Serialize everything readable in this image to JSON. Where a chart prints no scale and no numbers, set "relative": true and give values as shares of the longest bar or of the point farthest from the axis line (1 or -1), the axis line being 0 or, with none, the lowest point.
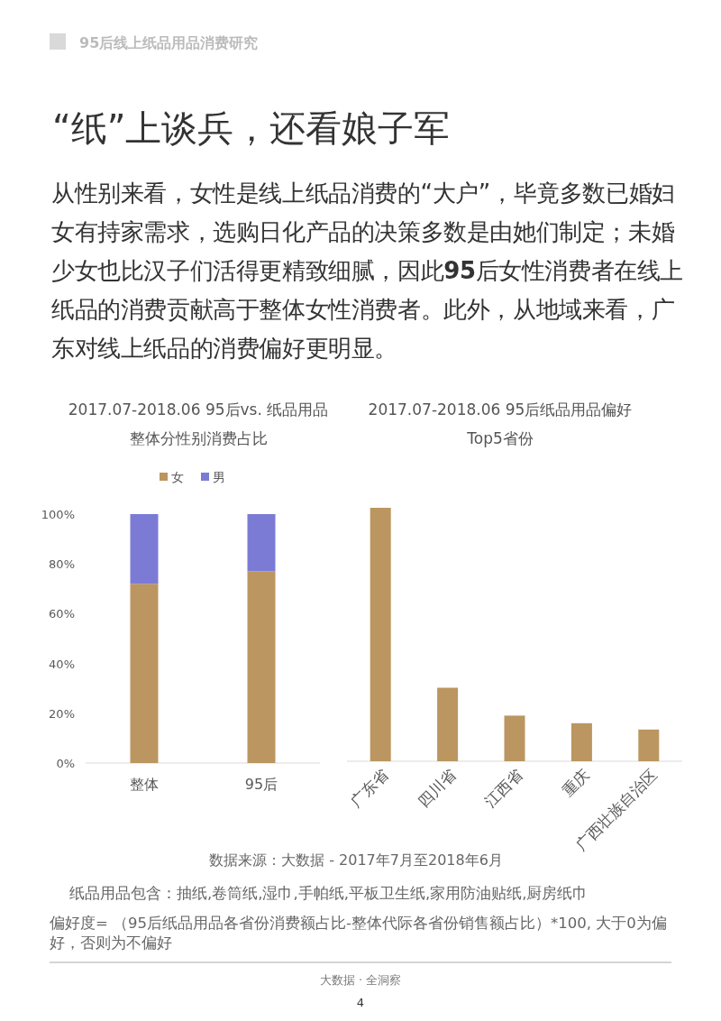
{
  "chart_data": [
    {
      "type": "bar",
      "title": "2017.07-2018.06 95后vs. 纸品用品整体分性别消费占比",
      "categories": [
        "整体",
        "95后"
      ],
      "stacked": true,
      "legend": "top",
      "series": [
        {
          "name": "女",
          "color": "#bb9660",
          "values": [
            72,
            77
          ]
        },
        {
          "name": "男",
          "color": "#7b7bd6",
          "values": [
            28,
            23
          ]
        }
      ],
      "ylim": [
        0,
        100
      ],
      "yticks": [
        {
          "value": 0,
          "label": "0%"
        },
        {
          "value": 20,
          "label": "20%"
        },
        {
          "value": 40,
          "label": "40%"
        },
        {
          "value": 60,
          "label": "60%"
        },
        {
          "value": 80,
          "label": "80%"
        },
        {
          "value": 100,
          "label": "100%"
        }
      ],
      "annotations": [
        "95后线上纸品用品消费研究",
        "“纸”上谈兵，还看娘子军",
        "从性别来看，女性是线上纸品消费的“大户”，毕竟多数已婚妇女有持家需求，选购日化产品的决策多数是由她们制定；未婚少女也比汉子们活得更精致细腻，因此**95**后女性消费者在线上纸品的消费贡献高于整体女性消费者。此外，从地域来看，广东对线上纸品的消费偏好更明显。"
      ]
    },
    {
      "type": "bar",
      "title": "2017.07-2018.06 95后纸品用品偏好Top5省份",
      "categories": [
        "广东省",
        "四川省",
        "江西省",
        "重庆",
        "广西壮族自治区"
      ],
      "relative": true,
      "color": "#bb9660",
      "values": [
        1,
        0.29,
        0.18,
        0.15,
        0.125
      ],
      "annotations": [
        "数据来源：大数据 - 2017年7月至2018年6月",
        "纸品用品包含：抽纸,卷筒纸,湿巾,手帕纸,平板卫生纸,家用防油贴纸,厨房纸巾",
        "偏好度= （95后纸品用品各省份消费额占比-整体代际各省份销售额占比）*100, 大于0为偏好，否则为不偏好",
        "大数据 · 全洞察",
        "4"
      ]
    }
  ]
}
